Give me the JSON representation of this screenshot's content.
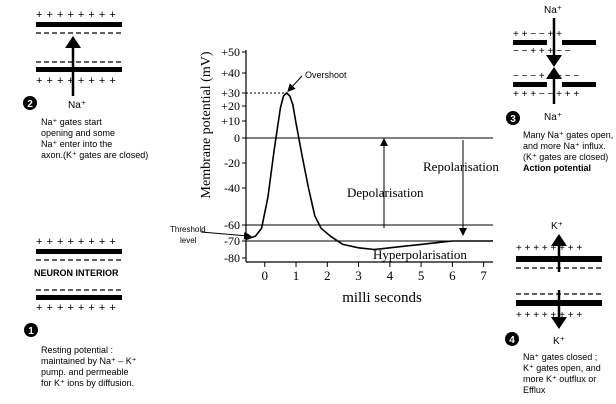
{
  "chart_data": {
    "type": "line",
    "title": "",
    "ylabel": "Membrane potential (mV)",
    "xlabel": "milli seconds",
    "xlim": [
      -0.6,
      7.3
    ],
    "ylim": [
      -80,
      50
    ],
    "x_ticks": [
      "0",
      "1",
      "2",
      "3",
      "4",
      "5",
      "6",
      "7"
    ],
    "y_ticks": [
      {
        "v": 50,
        "label": "+50"
      },
      {
        "v": 40,
        "label": "+40"
      },
      {
        "v": 30,
        "label": "+30"
      },
      {
        "v": 20,
        "label": "+20"
      },
      {
        "v": 10,
        "label": "+10"
      },
      {
        "v": 0,
        "label": "0"
      },
      {
        "v": -20,
        "label": "-20"
      },
      {
        "v": -40,
        "label": "-40"
      },
      {
        "v": -60,
        "label": "-60"
      },
      {
        "v": -70,
        "label": "-70"
      },
      {
        "v": -80,
        "label": "-80"
      }
    ],
    "reference_lines": [
      0,
      -60,
      -70
    ],
    "series": [
      {
        "x": [
          -0.6,
          -0.3,
          -0.1,
          0.1,
          0.3,
          0.5,
          0.6,
          0.7,
          0.8,
          0.9,
          1.0,
          1.2,
          1.4,
          1.6,
          1.8,
          2.1,
          2.5,
          3.0,
          3.5,
          4.0,
          4.5,
          5.0,
          5.5,
          6.0,
          6.5,
          7.3
        ],
        "y": [
          -69,
          -67,
          -62,
          -45,
          -10,
          20,
          28,
          30,
          28,
          22,
          10,
          -15,
          -40,
          -55,
          -62,
          -67,
          -72,
          -74,
          -75,
          -74,
          -73,
          -72,
          -71,
          -70,
          -70,
          -70
        ]
      }
    ],
    "annotations": {
      "overshoot": "Overshoot",
      "depolarisation": "Depolarisation",
      "repolarisation": "Repolarisation",
      "hyperpolarisation": "Hyperpolarisation",
      "threshold_line1": "Threshold",
      "threshold_line2": "level"
    }
  },
  "membrane": {
    "plus_row": "+ + + + + + + +",
    "dash_symbol": "− − − − − − −"
  },
  "labels": {
    "interior": "NEURON INTERIOR",
    "na": "Na⁺",
    "k": "K⁺"
  },
  "steps": [
    {
      "num": "1",
      "lines": [
        "Resting potential :",
        "maintained by Na⁺ – K⁺",
        "pump. and permeable",
        "for K⁺ ions by diffusion."
      ]
    },
    {
      "num": "2",
      "lines": [
        "Na⁺ gates start",
        "opening and some",
        "Na⁺ enter into the",
        "axon.(K⁺ gates are closed)"
      ]
    },
    {
      "num": "3",
      "lines": [
        "Many Na⁺ gates open,",
        "and more Na⁺ influx.",
        "(K⁺ gates are closed)"
      ],
      "bold": "Action potential"
    },
    {
      "num": "4",
      "lines": [
        "Na⁺ gates closed ;",
        "K⁺ gates open, and",
        "more K⁺ outflux or",
        "Efflux"
      ]
    }
  ]
}
